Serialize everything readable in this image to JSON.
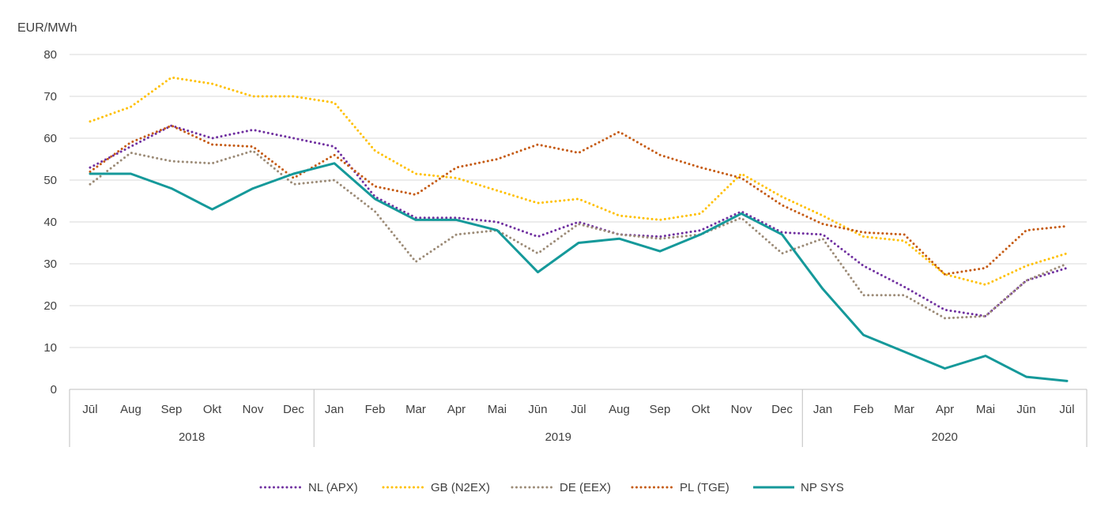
{
  "chart_data": {
    "type": "line",
    "ylabel": "EUR/MWh",
    "ylim": [
      0,
      80
    ],
    "yticks": [
      0,
      10,
      20,
      30,
      40,
      50,
      60,
      70,
      80
    ],
    "grid": "horizontal",
    "legend_position": "bottom",
    "months": [
      "Jūl",
      "Aug",
      "Sep",
      "Okt",
      "Nov",
      "Dec",
      "Jan",
      "Feb",
      "Mar",
      "Apr",
      "Mai",
      "Jūn",
      "Jūl",
      "Aug",
      "Sep",
      "Okt",
      "Nov",
      "Dec",
      "Jan",
      "Feb",
      "Mar",
      "Apr",
      "Mai",
      "Jūn",
      "Jūl"
    ],
    "years": [
      {
        "label": "2018",
        "start": 0,
        "end": 5
      },
      {
        "label": "2019",
        "start": 6,
        "end": 17
      },
      {
        "label": "2020",
        "start": 18,
        "end": 24
      }
    ],
    "series": [
      {
        "name": "NL (APX)",
        "color": "#7030A0",
        "style": "dotted",
        "values": [
          53,
          58,
          63,
          60,
          62,
          60,
          58,
          46,
          41,
          41,
          40,
          36.5,
          40,
          37,
          36.5,
          38,
          42.5,
          37.5,
          37,
          29.5,
          24.5,
          19,
          17.5,
          26,
          29
        ]
      },
      {
        "name": "GB (N2EX)",
        "color": "#FFC000",
        "style": "dotted",
        "values": [
          64,
          67.5,
          74.5,
          73,
          70,
          70,
          68.5,
          57,
          51.5,
          50.5,
          47.5,
          44.5,
          45.5,
          41.5,
          40.5,
          42,
          51.5,
          46,
          41.5,
          36.5,
          35.5,
          27.5,
          25,
          29.5,
          32.5
        ]
      },
      {
        "name": "DE (EEX)",
        "color": "#9C8B77",
        "style": "dotted",
        "values": [
          49,
          56.5,
          54.5,
          54,
          57,
          49,
          50,
          42.5,
          30.5,
          37,
          38,
          32.5,
          39.5,
          37,
          36,
          37,
          41,
          32.5,
          36,
          22.5,
          22.5,
          17,
          17.5,
          26,
          30
        ]
      },
      {
        "name": "PL (TGE)",
        "color": "#C55A11",
        "style": "dotted",
        "values": [
          52,
          59,
          63,
          58.5,
          58,
          50.5,
          56,
          48.5,
          46.5,
          53,
          55,
          58.5,
          56.5,
          61.5,
          56,
          53,
          50.5,
          44,
          39.5,
          37.5,
          37,
          27.5,
          29,
          38,
          39
        ]
      },
      {
        "name": "NP SYS",
        "color": "#15999A",
        "style": "solid",
        "values": [
          51.5,
          51.5,
          48,
          43,
          48,
          51.5,
          54,
          45.5,
          40.5,
          40.5,
          38,
          28,
          35,
          36,
          33,
          37,
          42,
          37,
          24,
          13,
          9,
          5,
          8,
          3,
          2
        ]
      }
    ]
  }
}
